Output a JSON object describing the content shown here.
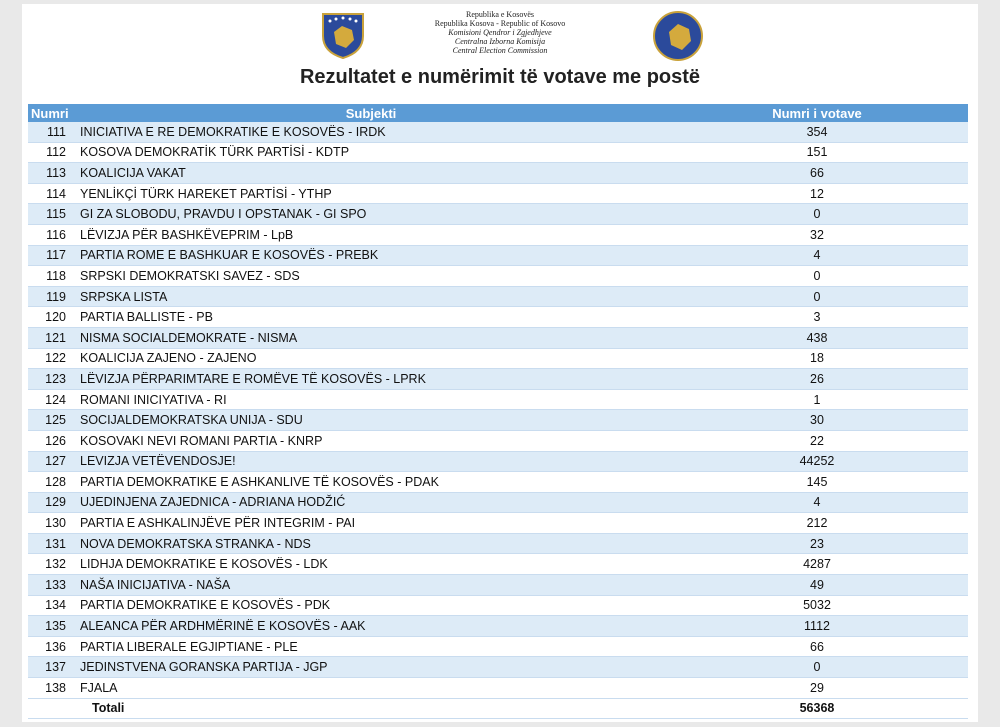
{
  "header": {
    "lines": [
      "Republika e Kosovës",
      "Republika Kosova - Republic of Kosovo",
      "Komisioni Qendror i Zgjedhjeve",
      "Centralna Izborna Komisija",
      "Central Election Commission"
    ],
    "title": "Rezultatet e numërimit të votave me postë"
  },
  "table": {
    "columns": [
      "Numri",
      "Subjekti",
      "Numri i votave"
    ],
    "rows": [
      [
        111,
        "INICIATIVA E RE DEMOKRATIKE E KOSOVËS - IRDK",
        354
      ],
      [
        112,
        "KOSOVA DEMOKRATİK TÜRK PARTİSİ - KDTP",
        151
      ],
      [
        113,
        "KOALICIJA VAKAT",
        66
      ],
      [
        114,
        "YENLİKÇİ TÜRK HAREKET PARTİSİ - YTHP",
        12
      ],
      [
        115,
        "GI ZA SLOBODU, PRAVDU I OPSTANAK - GI SPO",
        0
      ],
      [
        116,
        "LËVIZJA PËR BASHKËVEPRIM - LpB",
        32
      ],
      [
        117,
        "PARTIA ROME E BASHKUAR E KOSOVËS - PREBK",
        4
      ],
      [
        118,
        "SRPSKI DEMOKRATSKI SAVEZ - SDS",
        0
      ],
      [
        119,
        "SRPSKA LISTA",
        0
      ],
      [
        120,
        "PARTIA BALLISTE - PB",
        3
      ],
      [
        121,
        "NISMA SOCIALDEMOKRATE - NISMA",
        438
      ],
      [
        122,
        "KOALICIJA ZAJENO - ZAJENO",
        18
      ],
      [
        123,
        "LËVIZJA PËRPARIMTARE E ROMËVE TË KOSOVËS - LPRK",
        26
      ],
      [
        124,
        "ROMANI INICIYATIVA - RI",
        1
      ],
      [
        125,
        "SOCIJALDEMOKRATSKA UNIJA - SDU",
        30
      ],
      [
        126,
        "KOSOVAKI NEVI ROMANI PARTIA - KNRP",
        22
      ],
      [
        127,
        "LEVIZJA VETËVENDOSJE!",
        44252
      ],
      [
        128,
        "PARTIA DEMOKRATIKE E ASHKANLIVE TË KOSOVËS - PDAK",
        145
      ],
      [
        129,
        "UJEDINJENA ZAJEDNICA - ADRIANA HODŽIĆ",
        4
      ],
      [
        130,
        "PARTIA E ASHKALINJËVE PËR INTEGRIM - PAI",
        212
      ],
      [
        131,
        "NOVA DEMOKRATSKA STRANKA - NDS",
        23
      ],
      [
        132,
        "LIDHJA DEMOKRATIKE E KOSOVËS - LDK",
        4287
      ],
      [
        133,
        "NAŠA INICIJATIVA - NAŠA",
        49
      ],
      [
        134,
        "PARTIA DEMOKRATIKE E KOSOVËS - PDK",
        5032
      ],
      [
        135,
        "ALEANCA PËR ARDHMËRINË E KOSOVËS - AAK",
        1112
      ],
      [
        136,
        "PARTIA LIBERALE EGJIPTIANE - PLE",
        66
      ],
      [
        137,
        "JEDINSTVENA GORANSKA PARTIJA - JGP",
        0
      ],
      [
        138,
        "FJALA",
        29
      ]
    ],
    "total": {
      "label": "Totali",
      "value": 56368
    }
  }
}
